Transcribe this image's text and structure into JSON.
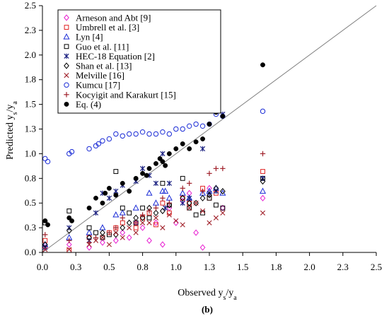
{
  "panel_label": "(b)",
  "chart_data": {
    "type": "scatter",
    "xlabel": {
      "main": "Observed y",
      "sub1": "s",
      "mid": "/y",
      "sub2": "a"
    },
    "ylabel": {
      "main": "Predicted y",
      "sub1": "s",
      "mid": "/y",
      "sub2": "a"
    },
    "xlim": [
      0,
      2.5
    ],
    "ylim": [
      0,
      2.5
    ],
    "x_ticks": [
      0.0,
      0.25,
      0.5,
      0.75,
      1.0,
      1.25,
      1.5,
      1.75,
      2.0,
      2.25,
      2.5
    ],
    "x_tick_labels": [
      "0.0",
      "0.3",
      "0.5",
      "0.8",
      "1.0",
      "1.3",
      "1.5",
      "1.8",
      "2.0",
      "2.3",
      "2.5"
    ],
    "y_ticks": [
      0.0,
      0.25,
      0.5,
      0.75,
      1.0,
      1.25,
      1.5,
      1.75,
      2.0,
      2.25,
      2.5
    ],
    "y_tick_labels": [
      "0.0",
      "0.3",
      "0.5",
      "0.8",
      "1.0",
      "1.3",
      "1.5",
      "1.8",
      "2.0",
      "2.3",
      "2.5"
    ],
    "grid": false,
    "reference_line": {
      "from": [
        0,
        0
      ],
      "to": [
        2.5,
        2.5
      ],
      "color": "#808080"
    },
    "legend_position": "top-left",
    "series": [
      {
        "name": "Arneson and Abt [9]",
        "marker": "diamond",
        "color": "#e81fd0",
        "points": [
          [
            0.02,
            0.05
          ],
          [
            0.2,
            0.08
          ],
          [
            0.35,
            0.05
          ],
          [
            0.45,
            0.1
          ],
          [
            0.55,
            0.12
          ],
          [
            0.6,
            0.2
          ],
          [
            0.65,
            0.15
          ],
          [
            0.7,
            0.3
          ],
          [
            0.75,
            0.25
          ],
          [
            0.8,
            0.12
          ],
          [
            0.85,
            0.3
          ],
          [
            0.9,
            0.08
          ],
          [
            0.95,
            0.45
          ],
          [
            1.0,
            0.3
          ],
          [
            1.05,
            0.52
          ],
          [
            1.1,
            0.6
          ],
          [
            1.15,
            0.2
          ],
          [
            1.2,
            0.05
          ],
          [
            1.25,
            0.65
          ],
          [
            1.35,
            0.45
          ],
          [
            1.65,
            0.55
          ]
        ]
      },
      {
        "name": "Umbrell et al. [3]",
        "marker": "square",
        "color": "#e02020",
        "points": [
          [
            0.02,
            0.12
          ],
          [
            0.2,
            0.02
          ],
          [
            0.35,
            0.15
          ],
          [
            0.45,
            0.15
          ],
          [
            0.5,
            0.2
          ],
          [
            0.55,
            0.25
          ],
          [
            0.6,
            0.3
          ],
          [
            0.7,
            0.25
          ],
          [
            0.75,
            0.35
          ],
          [
            0.8,
            0.4
          ],
          [
            0.85,
            0.28
          ],
          [
            0.9,
            0.5
          ],
          [
            0.95,
            0.4
          ],
          [
            1.05,
            0.55
          ],
          [
            1.1,
            0.5
          ],
          [
            1.2,
            0.65
          ],
          [
            1.25,
            0.55
          ],
          [
            1.3,
            0.6
          ],
          [
            1.65,
            0.82
          ]
        ]
      },
      {
        "name": "Lyn [4]",
        "marker": "triangle",
        "color": "#1a2bd6",
        "points": [
          [
            0.02,
            0.08
          ],
          [
            0.2,
            0.15
          ],
          [
            0.35,
            0.2
          ],
          [
            0.45,
            0.25
          ],
          [
            0.55,
            0.38
          ],
          [
            0.6,
            0.4
          ],
          [
            0.7,
            0.45
          ],
          [
            0.8,
            0.6
          ],
          [
            0.85,
            0.5
          ],
          [
            0.9,
            0.62
          ],
          [
            0.92,
            0.62
          ],
          [
            0.95,
            0.55
          ],
          [
            1.05,
            0.6
          ],
          [
            1.1,
            0.55
          ],
          [
            1.2,
            0.6
          ],
          [
            1.25,
            0.62
          ],
          [
            1.3,
            0.65
          ],
          [
            1.35,
            0.6
          ],
          [
            1.65,
            0.62
          ]
        ]
      },
      {
        "name": "Guo et al. [11]",
        "marker": "square",
        "color": "#000000",
        "points": [
          [
            0.02,
            0.3
          ],
          [
            0.2,
            0.42
          ],
          [
            0.35,
            0.25
          ],
          [
            0.4,
            0.2
          ],
          [
            0.45,
            0.15
          ],
          [
            0.5,
            0.18
          ],
          [
            0.55,
            0.82
          ],
          [
            0.6,
            0.45
          ],
          [
            0.65,
            0.4
          ],
          [
            0.7,
            0.3
          ],
          [
            0.75,
            0.45
          ],
          [
            0.8,
            0.35
          ],
          [
            0.9,
            0.7
          ],
          [
            0.95,
            0.48
          ],
          [
            1.05,
            0.75
          ],
          [
            1.1,
            0.45
          ],
          [
            1.15,
            0.38
          ],
          [
            1.2,
            0.4
          ],
          [
            1.25,
            0.55
          ],
          [
            1.3,
            0.48
          ],
          [
            1.35,
            0.45
          ],
          [
            1.65,
            0.75
          ]
        ]
      },
      {
        "name": "HEC-18 Equation [2]",
        "marker": "asterisk",
        "color": "#1a2080",
        "points": [
          [
            0.02,
            0.05
          ],
          [
            0.2,
            0.25
          ],
          [
            0.35,
            0.12
          ],
          [
            0.4,
            0.4
          ],
          [
            0.45,
            0.6
          ],
          [
            0.5,
            0.55
          ],
          [
            0.55,
            0.62
          ],
          [
            0.6,
            0.68
          ],
          [
            0.7,
            0.72
          ],
          [
            0.75,
            0.85
          ],
          [
            0.8,
            0.78
          ],
          [
            0.85,
            0.7
          ],
          [
            0.9,
            1.0
          ],
          [
            0.92,
            0.45
          ],
          [
            0.95,
            0.7
          ],
          [
            1.05,
            0.5
          ],
          [
            1.1,
            0.55
          ],
          [
            1.2,
            1.05
          ],
          [
            1.25,
            0.6
          ],
          [
            1.3,
            0.62
          ],
          [
            1.35,
            1.4
          ],
          [
            1.65,
            0.75
          ]
        ]
      },
      {
        "name": "Shan et al. [13]",
        "marker": "diamond",
        "color": "#000000",
        "points": [
          [
            0.02,
            0.08
          ],
          [
            0.2,
            0.22
          ],
          [
            0.35,
            0.15
          ],
          [
            0.45,
            0.2
          ],
          [
            0.55,
            0.18
          ],
          [
            0.6,
            0.25
          ],
          [
            0.65,
            0.3
          ],
          [
            0.7,
            0.35
          ],
          [
            0.75,
            0.35
          ],
          [
            0.8,
            0.45
          ],
          [
            0.85,
            0.4
          ],
          [
            0.9,
            0.42
          ],
          [
            0.95,
            0.48
          ],
          [
            1.05,
            0.55
          ],
          [
            1.1,
            0.5
          ],
          [
            1.15,
            0.5
          ],
          [
            1.2,
            0.55
          ],
          [
            1.25,
            0.58
          ],
          [
            1.3,
            0.65
          ],
          [
            1.35,
            0.62
          ],
          [
            1.65,
            0.72
          ]
        ]
      },
      {
        "name": "Melville [16]",
        "marker": "x",
        "color": "#a0202a",
        "points": [
          [
            0.02,
            0.03
          ],
          [
            0.2,
            0.03
          ],
          [
            0.35,
            0.08
          ],
          [
            0.4,
            0.12
          ],
          [
            0.45,
            0.15
          ],
          [
            0.5,
            0.08
          ],
          [
            0.55,
            0.2
          ],
          [
            0.6,
            0.15
          ],
          [
            0.65,
            0.25
          ],
          [
            0.7,
            0.2
          ],
          [
            0.75,
            0.3
          ],
          [
            0.8,
            0.3
          ],
          [
            0.85,
            0.35
          ],
          [
            0.9,
            0.25
          ],
          [
            0.95,
            0.38
          ],
          [
            1.0,
            0.32
          ],
          [
            1.05,
            0.28
          ],
          [
            1.1,
            0.45
          ],
          [
            1.15,
            0.5
          ],
          [
            1.2,
            0.42
          ],
          [
            1.25,
            0.3
          ],
          [
            1.3,
            0.35
          ],
          [
            1.35,
            0.4
          ],
          [
            1.65,
            0.4
          ]
        ]
      },
      {
        "name": "Kumcu [17]",
        "marker": "circle",
        "color": "#1a2bd6",
        "points": [
          [
            0.02,
            0.95
          ],
          [
            0.04,
            0.92
          ],
          [
            0.2,
            1.0
          ],
          [
            0.22,
            1.02
          ],
          [
            0.35,
            1.05
          ],
          [
            0.4,
            1.08
          ],
          [
            0.42,
            1.1
          ],
          [
            0.45,
            1.13
          ],
          [
            0.5,
            1.15
          ],
          [
            0.55,
            1.2
          ],
          [
            0.6,
            1.18
          ],
          [
            0.65,
            1.2
          ],
          [
            0.7,
            1.2
          ],
          [
            0.75,
            1.22
          ],
          [
            0.8,
            1.2
          ],
          [
            0.85,
            1.2
          ],
          [
            0.9,
            1.22
          ],
          [
            0.95,
            1.2
          ],
          [
            1.0,
            1.25
          ],
          [
            1.05,
            1.25
          ],
          [
            1.1,
            1.28
          ],
          [
            1.15,
            1.3
          ],
          [
            1.2,
            1.28
          ],
          [
            1.25,
            1.3
          ],
          [
            1.3,
            1.4
          ],
          [
            1.35,
            1.38
          ],
          [
            1.65,
            1.43
          ]
        ]
      },
      {
        "name": "Kocyigit and Karakurt [15]",
        "marker": "plus",
        "color": "#a0202a",
        "points": [
          [
            0.02,
            0.18
          ],
          [
            0.2,
            0.12
          ],
          [
            0.35,
            0.1
          ],
          [
            0.4,
            0.15
          ],
          [
            0.5,
            0.2
          ],
          [
            0.55,
            0.25
          ],
          [
            0.6,
            0.35
          ],
          [
            0.7,
            0.3
          ],
          [
            0.75,
            0.38
          ],
          [
            0.8,
            0.42
          ],
          [
            0.85,
            0.45
          ],
          [
            0.9,
            0.55
          ],
          [
            0.95,
            0.5
          ],
          [
            1.05,
            0.65
          ],
          [
            1.1,
            0.7
          ],
          [
            1.2,
            0.62
          ],
          [
            1.25,
            0.8
          ],
          [
            1.3,
            0.85
          ],
          [
            1.35,
            0.85
          ],
          [
            1.65,
            1.0
          ]
        ]
      },
      {
        "name": "Eq. (4)",
        "marker": "filled-circle",
        "color": "#000000",
        "points": [
          [
            0.02,
            0.32
          ],
          [
            0.04,
            0.28
          ],
          [
            0.2,
            0.35
          ],
          [
            0.22,
            0.32
          ],
          [
            0.35,
            0.45
          ],
          [
            0.4,
            0.55
          ],
          [
            0.45,
            0.5
          ],
          [
            0.47,
            0.6
          ],
          [
            0.5,
            0.65
          ],
          [
            0.55,
            0.58
          ],
          [
            0.6,
            0.7
          ],
          [
            0.65,
            0.62
          ],
          [
            0.7,
            0.75
          ],
          [
            0.75,
            0.8
          ],
          [
            0.78,
            0.78
          ],
          [
            0.8,
            0.85
          ],
          [
            0.85,
            0.9
          ],
          [
            0.88,
            0.95
          ],
          [
            0.9,
            0.92
          ],
          [
            0.92,
            0.88
          ],
          [
            0.95,
            1.0
          ],
          [
            1.0,
            1.05
          ],
          [
            1.05,
            1.1
          ],
          [
            1.1,
            1.05
          ],
          [
            1.15,
            1.12
          ],
          [
            1.2,
            1.15
          ],
          [
            1.25,
            1.3
          ],
          [
            1.3,
            1.42
          ],
          [
            1.35,
            1.38
          ],
          [
            1.65,
            1.9
          ]
        ]
      }
    ],
    "colors": {
      "axis": "#000000",
      "reference_line": "#808080"
    }
  }
}
